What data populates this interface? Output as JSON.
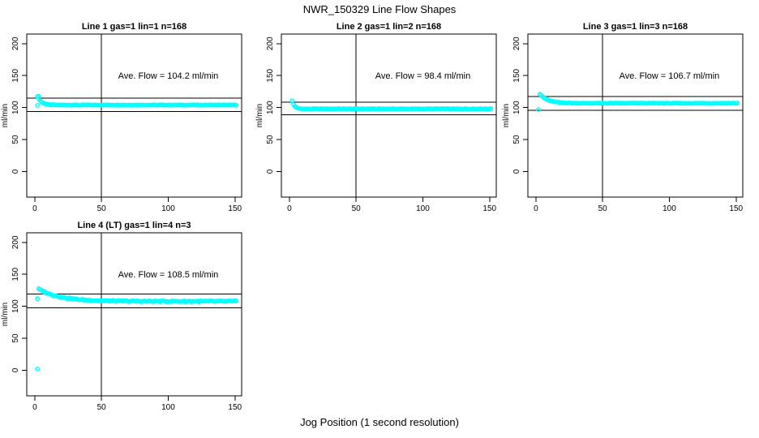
{
  "figure": {
    "title": "NWR_150329  Line Flow Shapes",
    "xlabel": "Jog Position (1 second resolution)",
    "background_color": "#ffffff",
    "point_color": "#00ffff",
    "line_color": "#000000"
  },
  "chart_data": [
    {
      "type": "scatter",
      "title": "Line 1 gas=1 lin=1 n=168",
      "ylabel": "ml/min",
      "annotation": "Ave. Flow =  104.2  ml/min",
      "ave_flow_ml_min": 104.2,
      "n_points": 168,
      "xlim": [
        -6,
        155
      ],
      "ylim": [
        -40,
        215
      ],
      "x_ticks": [
        0,
        50,
        100,
        150
      ],
      "y_ticks": [
        0,
        50,
        100,
        150,
        200
      ],
      "vline_x": 50,
      "hlines": [
        114.6,
        93.8
      ],
      "series": {
        "x_start": 2,
        "x_end": 151,
        "y_start": 117.5,
        "y_settle": 104,
        "tau": 3,
        "noise": 0.35
      },
      "extra_points": [
        [
          2,
          103.5
        ],
        [
          3,
          118
        ]
      ],
      "annotation_at": [
        100,
        150
      ],
      "grid": false,
      "legend": "none"
    },
    {
      "type": "scatter",
      "title": "Line 2 gas=1 lin=2 n=168",
      "ylabel": "ml/min",
      "annotation": "Ave. Flow =  98.4  ml/min",
      "ave_flow_ml_min": 98.4,
      "n_points": 168,
      "xlim": [
        -6,
        155
      ],
      "ylim": [
        -40,
        215
      ],
      "x_ticks": [
        0,
        50,
        100,
        150
      ],
      "y_ticks": [
        0,
        50,
        100,
        150,
        200
      ],
      "vline_x": 50,
      "hlines": [
        108.2,
        88.6
      ],
      "series": {
        "x_start": 2,
        "x_end": 151,
        "y_start": 110.5,
        "y_settle": 98,
        "tau": 1.8,
        "noise": 0.45
      },
      "extra_points": [],
      "annotation_at": [
        100,
        150
      ],
      "grid": false,
      "legend": "none"
    },
    {
      "type": "scatter",
      "title": "Line 3 gas=1 lin=3 n=168",
      "ylabel": "ml/min",
      "annotation": "Ave. Flow =  106.7  ml/min",
      "ave_flow_ml_min": 106.7,
      "n_points": 168,
      "xlim": [
        -6,
        155
      ],
      "ylim": [
        -40,
        215
      ],
      "x_ticks": [
        0,
        50,
        100,
        150
      ],
      "y_ticks": [
        0,
        50,
        100,
        150,
        200
      ],
      "vline_x": 50,
      "hlines": [
        117.4,
        96.0
      ],
      "series": {
        "x_start": 3,
        "x_end": 151,
        "y_start": 121,
        "y_settle": 106.8,
        "tau": 6,
        "noise": 0.4
      },
      "extra_points": [
        [
          2,
          97
        ]
      ],
      "annotation_at": [
        100,
        150
      ],
      "grid": false,
      "legend": "none"
    },
    {
      "type": "scatter",
      "title": "Line 4 (LT) gas=1 lin=4 n=3",
      "ylabel": "ml/min",
      "annotation": "Ave. Flow =  108.5  ml/min",
      "ave_flow_ml_min": 108.5,
      "n_points": 3,
      "xlim": [
        -6,
        155
      ],
      "ylim": [
        -40,
        215
      ],
      "x_ticks": [
        0,
        50,
        100,
        150
      ],
      "y_ticks": [
        0,
        50,
        100,
        150,
        200
      ],
      "vline_x": 50,
      "hlines": [
        119.4,
        97.7
      ],
      "series": {
        "x_start": 3,
        "x_end": 151,
        "y_start": 127,
        "y_settle": 107.8,
        "tau": 16,
        "noise": 0.9
      },
      "extra_points": [
        [
          2,
          2
        ],
        [
          2,
          112
        ]
      ],
      "annotation_at": [
        100,
        150
      ],
      "grid": false,
      "legend": "none"
    }
  ]
}
